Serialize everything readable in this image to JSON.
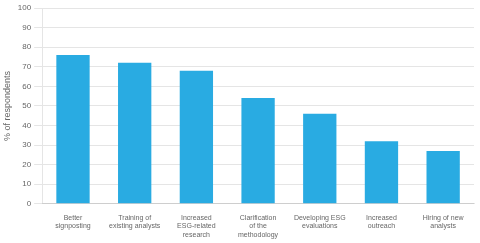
{
  "chart_data": {
    "type": "bar",
    "categories": [
      "Better\nsignposting",
      "Training of\nexisting analysts",
      "Increased\nESG-related\nresearch",
      "Clarification\nof the\nmethodology",
      "Developing ESG\nevaluations",
      "Increased\noutreach",
      "Hiring of new\nanalysts"
    ],
    "values": [
      76,
      72,
      68,
      54,
      46,
      32,
      27
    ],
    "color": "#29ABE2",
    "ylabel": "% of respondents",
    "ylim": [
      0,
      100
    ],
    "yticks": [
      0,
      10,
      20,
      30,
      40,
      50,
      60,
      70,
      80,
      90,
      100
    ],
    "grid": true
  }
}
